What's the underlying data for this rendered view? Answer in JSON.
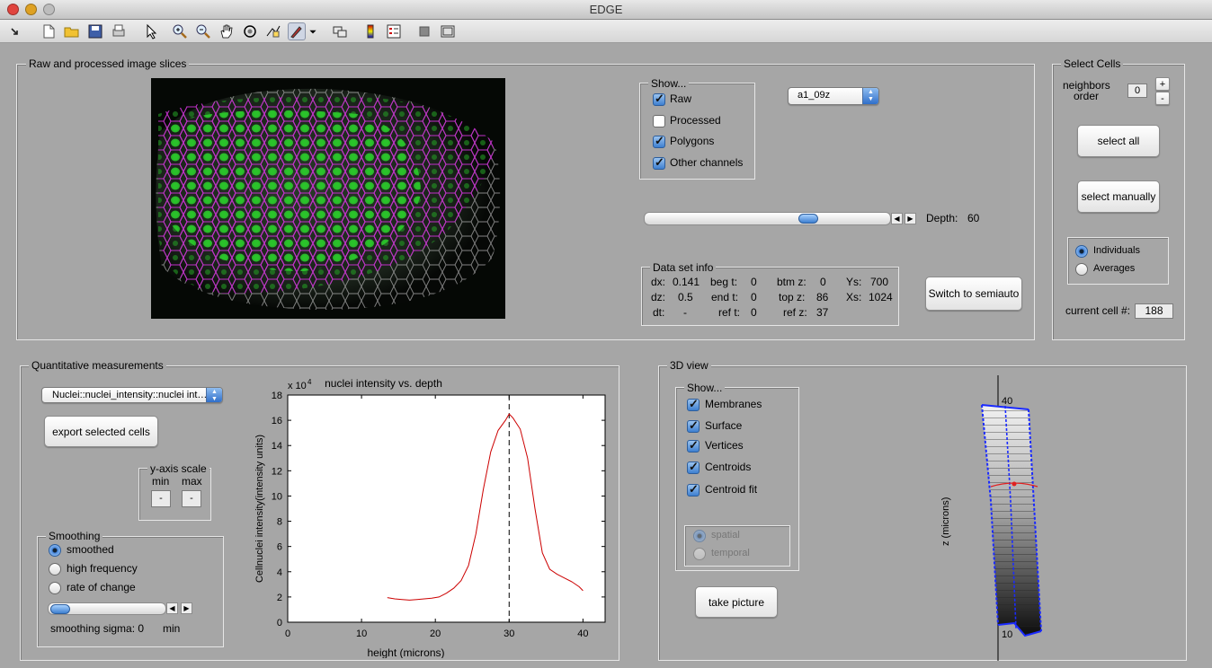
{
  "window": {
    "title": "EDGE"
  },
  "toolbar": {
    "icons": [
      "arrow-small-icon",
      "new-file-icon",
      "open-folder-icon",
      "save-icon",
      "print-icon",
      "pointer-icon",
      "zoom-in-icon",
      "zoom-out-icon",
      "pan-hand-icon",
      "rotate-3d-icon",
      "data-cursor-icon",
      "brush-icon",
      "dropdown-caret-icon",
      "link-plot-icon",
      "colorbar-icon",
      "legend-icon",
      "hide-tools-icon",
      "show-tools-icon"
    ]
  },
  "raw_panel": {
    "title": "Raw and processed image slices",
    "show": {
      "title": "Show...",
      "items": [
        {
          "label": "Raw",
          "checked": true
        },
        {
          "label": "Processed",
          "checked": false
        },
        {
          "label": "Polygons",
          "checked": true
        },
        {
          "label": "Other channels",
          "checked": true
        }
      ]
    },
    "dataset_popup": "a1_09z",
    "depth_label": "Depth:",
    "depth_value": "60",
    "depth_fraction": 0.68,
    "info": {
      "title": "Data set info",
      "dx_label": "dx:",
      "dx": "0.141",
      "dz_label": "dz:",
      "dz": "0.5",
      "dt_label": "dt:",
      "dt": "-",
      "begt_label": "beg t:",
      "begt": "0",
      "endt_label": "end t:",
      "endt": "0",
      "reft_label": "ref t:",
      "reft": "0",
      "btmz_label": "btm z:",
      "btmz": "0",
      "topz_label": "top z:",
      "topz": "86",
      "refz_label": "ref z:",
      "refz": "37",
      "ys_label": "Ys:",
      "ys": "700",
      "xs_label": "Xs:",
      "xs": "1024"
    },
    "switch_button": "Switch to semiauto"
  },
  "select_cells": {
    "title": "Select Cells",
    "neighbors_label_1": "neighbors",
    "neighbors_label_2": "order",
    "neighbors_value": "0",
    "plus": "+",
    "minus": "-",
    "select_all": "select all",
    "select_manually": "select manually",
    "individuals": "Individuals",
    "averages": "Averages",
    "current_cell_label": "current cell #:",
    "current_cell_value": "188"
  },
  "quant_panel": {
    "title": "Quantitative measurements",
    "measure_popup": "Nuclei::nuclei_intensity::nuclei int…",
    "export_button": "export selected cells",
    "yaxis": {
      "title": "y-axis scale",
      "min_label": "min",
      "max_label": "max",
      "min_value": "-",
      "max_value": "-"
    },
    "smoothing": {
      "title": "Smoothing",
      "options": [
        {
          "label": "smoothed",
          "selected": true
        },
        {
          "label": "high frequency",
          "selected": false
        },
        {
          "label": "rate of change",
          "selected": false
        }
      ],
      "sigma_label": "smoothing sigma: 0",
      "sigma_unit": "min",
      "slider_fraction": 0.0
    }
  },
  "chart_data": {
    "type": "line",
    "title": "nuclei intensity vs. depth",
    "xlabel": "height (microns)",
    "ylabel": "Cellnuclei intensity(intensity units)",
    "y_multiplier": "x 10",
    "y_exponent": "4",
    "xlim": [
      0,
      43
    ],
    "ylim": [
      0,
      18
    ],
    "xticks": [
      "0",
      "10",
      "20",
      "30",
      "40"
    ],
    "yticks": [
      "0",
      "2",
      "4",
      "6",
      "8",
      "10",
      "12",
      "14",
      "16",
      "18"
    ],
    "marker_x": 30,
    "series": [
      {
        "color": "#cc0000",
        "x": [
          13.5,
          14.5,
          15.5,
          16.5,
          17.5,
          18.5,
          19.5,
          20.5,
          21.5,
          22.5,
          23.5,
          24.5,
          25.5,
          26.5,
          27.5,
          28.5,
          29.5,
          30.0,
          30.5,
          31.5,
          32.5,
          33.5,
          34.5,
          35.5,
          36.5,
          37.5,
          38.5,
          39.5,
          40.0
        ],
        "y": [
          1.95,
          1.85,
          1.8,
          1.75,
          1.8,
          1.85,
          1.9,
          2.0,
          2.3,
          2.7,
          3.3,
          4.5,
          7.0,
          10.5,
          13.5,
          15.2,
          16.0,
          16.5,
          16.2,
          15.3,
          13.0,
          9.0,
          5.5,
          4.2,
          3.8,
          3.5,
          3.2,
          2.8,
          2.5
        ]
      }
    ]
  },
  "view3d": {
    "title": "3D view",
    "show": {
      "title": "Show...",
      "items": [
        {
          "label": "Membranes",
          "checked": true
        },
        {
          "label": "Surface",
          "checked": true
        },
        {
          "label": "Vertices",
          "checked": true
        },
        {
          "label": "Centroids",
          "checked": true
        },
        {
          "label": "Centroid fit",
          "checked": true
        }
      ],
      "spatial": "spatial",
      "temporal": "temporal"
    },
    "take_picture": "take picture",
    "zlabel": "z (microns)",
    "tick_top": "40",
    "tick_bottom": "10"
  }
}
